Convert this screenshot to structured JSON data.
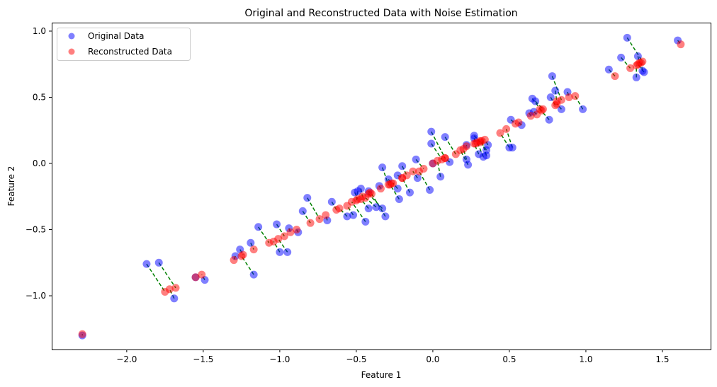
{
  "chart_data": {
    "type": "scatter",
    "title": "Original and Reconstructed Data with Noise Estimation",
    "xlabel": "Feature 1",
    "ylabel": "Feature 2",
    "xlim": [
      -2.49,
      1.815
    ],
    "ylim": [
      -1.406,
      1.064
    ],
    "xticks": [
      -2.0,
      -1.5,
      -1.0,
      -0.5,
      0.0,
      0.5,
      1.0,
      1.5
    ],
    "xtick_labels": [
      "−2.0",
      "−1.5",
      "−1.0",
      "−0.5",
      "0.0",
      "0.5",
      "1.0",
      "1.5"
    ],
    "yticks": [
      -1.0,
      -0.5,
      0.0,
      0.5,
      1.0
    ],
    "ytick_labels": [
      "−1.0",
      "−0.5",
      "0.0",
      "0.5",
      "1.0"
    ],
    "grid": false,
    "legend": {
      "placement": "top-left",
      "entries": [
        {
          "label": "Original Data",
          "color": "#0000ff"
        },
        {
          "label": "Reconstructed Data",
          "color": "#ff0000"
        }
      ]
    },
    "colors": {
      "original": "#0000ff",
      "reconstructed": "#ff0000",
      "noise_line": "#008000"
    },
    "series": [
      {
        "name": "Original Data",
        "points": [
          [
            -2.29,
            -1.3
          ],
          [
            -1.87,
            -0.76
          ],
          [
            -1.79,
            -0.75
          ],
          [
            -1.69,
            -1.02
          ],
          [
            -1.55,
            -0.86
          ],
          [
            -1.49,
            -0.88
          ],
          [
            -1.29,
            -0.7
          ],
          [
            -1.26,
            -0.65
          ],
          [
            -1.17,
            -0.84
          ],
          [
            -1.19,
            -0.6
          ],
          [
            -1.14,
            -0.48
          ],
          [
            -1.02,
            -0.46
          ],
          [
            -1.0,
            -0.67
          ],
          [
            -0.95,
            -0.67
          ],
          [
            -0.94,
            -0.49
          ],
          [
            -0.88,
            -0.52
          ],
          [
            -0.85,
            -0.36
          ],
          [
            -0.82,
            -0.26
          ],
          [
            -0.69,
            -0.43
          ],
          [
            -0.66,
            -0.29
          ],
          [
            -0.56,
            -0.4
          ],
          [
            -0.52,
            -0.39
          ],
          [
            -0.44,
            -0.44
          ],
          [
            -0.51,
            -0.22
          ],
          [
            -0.47,
            -0.19
          ],
          [
            -0.49,
            -0.21
          ],
          [
            -0.42,
            -0.34
          ],
          [
            -0.42,
            -0.21
          ],
          [
            -0.37,
            -0.33
          ],
          [
            -0.33,
            -0.34
          ],
          [
            -0.31,
            -0.4
          ],
          [
            -0.35,
            -0.17
          ],
          [
            -0.33,
            -0.03
          ],
          [
            -0.29,
            -0.12
          ],
          [
            -0.23,
            -0.19
          ],
          [
            -0.22,
            -0.27
          ],
          [
            -0.2,
            -0.02
          ],
          [
            -0.23,
            -0.09
          ],
          [
            -0.15,
            -0.22
          ],
          [
            -0.11,
            0.03
          ],
          [
            -0.1,
            -0.11
          ],
          [
            -0.02,
            -0.2
          ],
          [
            0.0,
            0.0
          ],
          [
            -0.01,
            0.24
          ],
          [
            -0.01,
            0.15
          ],
          [
            0.08,
            0.2
          ],
          [
            0.05,
            -0.1
          ],
          [
            0.11,
            0.01
          ],
          [
            0.23,
            -0.01
          ],
          [
            0.22,
            0.03
          ],
          [
            0.22,
            0.14
          ],
          [
            0.27,
            0.21
          ],
          [
            0.27,
            0.19
          ],
          [
            0.3,
            0.07
          ],
          [
            0.33,
            0.05
          ],
          [
            0.35,
            0.1
          ],
          [
            0.36,
            0.14
          ],
          [
            0.35,
            0.06
          ],
          [
            0.51,
            0.33
          ],
          [
            0.5,
            0.12
          ],
          [
            0.52,
            0.12
          ],
          [
            0.58,
            0.29
          ],
          [
            0.63,
            0.38
          ],
          [
            0.66,
            0.39
          ],
          [
            0.65,
            0.49
          ],
          [
            0.67,
            0.47
          ],
          [
            0.76,
            0.33
          ],
          [
            0.78,
            0.66
          ],
          [
            0.8,
            0.55
          ],
          [
            0.77,
            0.5
          ],
          [
            0.84,
            0.41
          ],
          [
            0.88,
            0.54
          ],
          [
            0.98,
            0.41
          ],
          [
            1.15,
            0.71
          ],
          [
            1.23,
            0.8
          ],
          [
            1.27,
            0.95
          ],
          [
            1.34,
            0.81
          ],
          [
            1.33,
            0.65
          ],
          [
            1.37,
            0.7
          ],
          [
            1.38,
            0.69
          ],
          [
            1.6,
            0.93
          ]
        ]
      },
      {
        "name": "Reconstructed Data",
        "points": [
          [
            -2.29,
            -1.29
          ],
          [
            -1.75,
            -0.97
          ],
          [
            -1.68,
            -0.94
          ],
          [
            -1.72,
            -0.95
          ],
          [
            -1.55,
            -0.86
          ],
          [
            -1.51,
            -0.84
          ],
          [
            -1.3,
            -0.73
          ],
          [
            -1.24,
            -0.69
          ],
          [
            -1.25,
            -0.7
          ],
          [
            -1.17,
            -0.65
          ],
          [
            -1.07,
            -0.6
          ],
          [
            -0.97,
            -0.55
          ],
          [
            -1.04,
            -0.59
          ],
          [
            -1.01,
            -0.57
          ],
          [
            -0.93,
            -0.52
          ],
          [
            -0.89,
            -0.5
          ],
          [
            -0.8,
            -0.45
          ],
          [
            -0.74,
            -0.42
          ],
          [
            -0.7,
            -0.39
          ],
          [
            -0.63,
            -0.35
          ],
          [
            -0.61,
            -0.34
          ],
          [
            -0.56,
            -0.32
          ],
          [
            -0.53,
            -0.29
          ],
          [
            -0.49,
            -0.27
          ],
          [
            -0.46,
            -0.25
          ],
          [
            -0.5,
            -0.28
          ],
          [
            -0.47,
            -0.27
          ],
          [
            -0.41,
            -0.22
          ],
          [
            -0.44,
            -0.26
          ],
          [
            -0.42,
            -0.23
          ],
          [
            -0.4,
            -0.23
          ],
          [
            -0.34,
            -0.19
          ],
          [
            -0.29,
            -0.16
          ],
          [
            -0.27,
            -0.15
          ],
          [
            -0.26,
            -0.15
          ],
          [
            -0.28,
            -0.16
          ],
          [
            -0.17,
            -0.09
          ],
          [
            -0.2,
            -0.11
          ],
          [
            -0.2,
            -0.11
          ],
          [
            -0.06,
            -0.04
          ],
          [
            -0.13,
            -0.06
          ],
          [
            -0.09,
            -0.06
          ],
          [
            0.0,
            0.0
          ],
          [
            0.08,
            0.04
          ],
          [
            0.06,
            0.03
          ],
          [
            0.15,
            0.07
          ],
          [
            0.03,
            0.02
          ],
          [
            0.08,
            0.04
          ],
          [
            0.18,
            0.1
          ],
          [
            0.2,
            0.11
          ],
          [
            0.22,
            0.13
          ],
          [
            0.31,
            0.16
          ],
          [
            0.28,
            0.15
          ],
          [
            0.27,
            0.15
          ],
          [
            0.29,
            0.16
          ],
          [
            0.31,
            0.17
          ],
          [
            0.34,
            0.18
          ],
          [
            0.32,
            0.17
          ],
          [
            0.54,
            0.3
          ],
          [
            0.44,
            0.23
          ],
          [
            0.48,
            0.26
          ],
          [
            0.56,
            0.31
          ],
          [
            0.64,
            0.36
          ],
          [
            0.68,
            0.37
          ],
          [
            0.71,
            0.4
          ],
          [
            0.72,
            0.41
          ],
          [
            0.7,
            0.41
          ],
          [
            0.84,
            0.48
          ],
          [
            0.81,
            0.47
          ],
          [
            0.8,
            0.44
          ],
          [
            0.81,
            0.45
          ],
          [
            0.89,
            0.5
          ],
          [
            0.93,
            0.51
          ],
          [
            1.19,
            0.66
          ],
          [
            1.29,
            0.72
          ],
          [
            1.37,
            0.77
          ],
          [
            1.35,
            0.76
          ],
          [
            1.33,
            0.74
          ],
          [
            1.36,
            0.76
          ],
          [
            1.34,
            0.75
          ],
          [
            1.62,
            0.9
          ]
        ]
      }
    ],
    "noise_lines": "dashed green segment connecting each Original Data point to its Reconstructed Data point"
  }
}
